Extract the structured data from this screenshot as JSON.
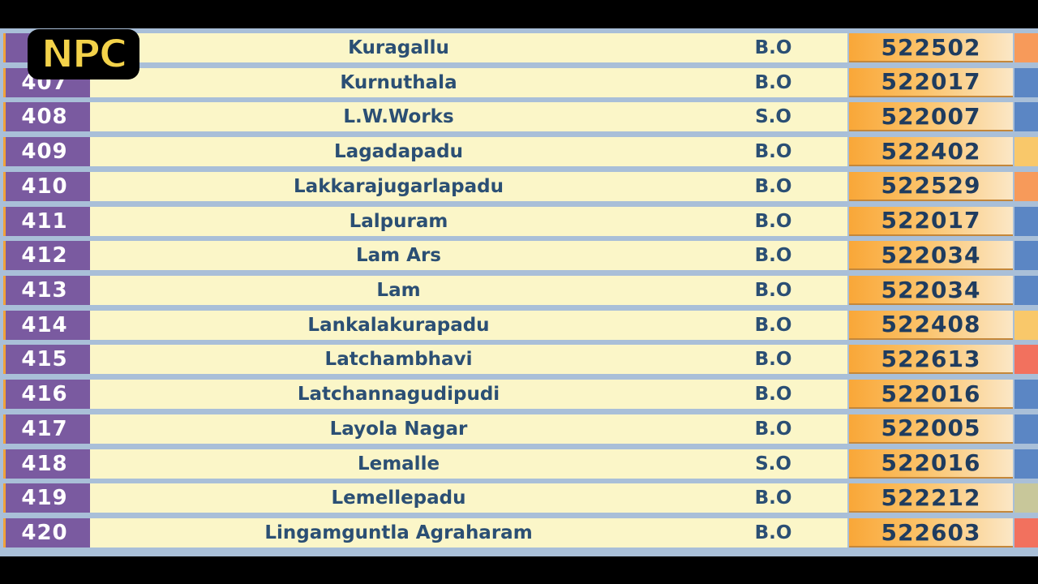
{
  "logo_text": "NPC",
  "rows": [
    {
      "num": "",
      "name": "Kuragallu",
      "type": "B.O",
      "pin": "522502",
      "accent": "#f79a5a"
    },
    {
      "num": "407",
      "name": "Kurnuthala",
      "type": "B.O",
      "pin": "522017",
      "accent": "#5b86c4"
    },
    {
      "num": "408",
      "name": "L.W.Works",
      "type": "S.O",
      "pin": "522007",
      "accent": "#5b86c4"
    },
    {
      "num": "409",
      "name": "Lagadapadu",
      "type": "B.O",
      "pin": "522402",
      "accent": "#f9c86a"
    },
    {
      "num": "410",
      "name": "Lakkarajugarlapadu",
      "type": "B.O",
      "pin": "522529",
      "accent": "#f79a5a"
    },
    {
      "num": "411",
      "name": "Lalpuram",
      "type": "B.O",
      "pin": "522017",
      "accent": "#5b86c4"
    },
    {
      "num": "412",
      "name": "Lam Ars",
      "type": "B.O",
      "pin": "522034",
      "accent": "#5b86c4"
    },
    {
      "num": "413",
      "name": "Lam",
      "type": "B.O",
      "pin": "522034",
      "accent": "#5b86c4"
    },
    {
      "num": "414",
      "name": "Lankalakurapadu",
      "type": "B.O",
      "pin": "522408",
      "accent": "#f9c86a"
    },
    {
      "num": "415",
      "name": "Latchambhavi",
      "type": "B.O",
      "pin": "522613",
      "accent": "#f2715e"
    },
    {
      "num": "416",
      "name": "Latchannagudipudi",
      "type": "B.O",
      "pin": "522016",
      "accent": "#5b86c4"
    },
    {
      "num": "417",
      "name": "Layola Nagar",
      "type": "B.O",
      "pin": "522005",
      "accent": "#5b86c4"
    },
    {
      "num": "418",
      "name": "Lemalle",
      "type": "S.O",
      "pin": "522016",
      "accent": "#5b86c4"
    },
    {
      "num": "419",
      "name": "Lemellepadu",
      "type": "B.O",
      "pin": "522212",
      "accent": "#c8c79a"
    },
    {
      "num": "420",
      "name": "Lingamguntla Agraharam",
      "type": "B.O",
      "pin": "522603",
      "accent": "#f2715e"
    }
  ]
}
